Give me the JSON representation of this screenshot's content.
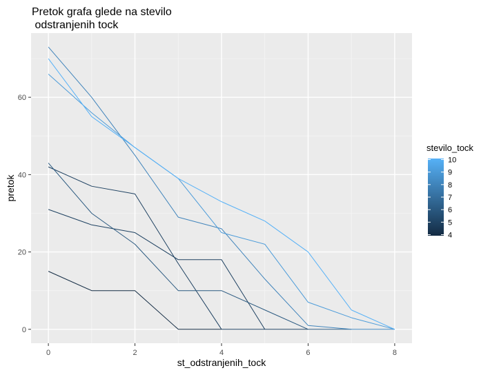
{
  "chart_data": {
    "type": "line",
    "title_lines": [
      "Pretok grafa glede na stevilo",
      " odstranjenih tock"
    ],
    "xlabel": "st_odstranjenih_tock",
    "ylabel": "pretok",
    "xlim": [
      -0.4,
      8.4
    ],
    "ylim": [
      -3.6,
      76.6
    ],
    "x_ticks": [
      0,
      2,
      4,
      6,
      8
    ],
    "y_ticks": [
      0,
      20,
      40,
      60
    ],
    "grid": true,
    "legend": {
      "title": "stevilo_tock",
      "position": "right",
      "range": [
        4,
        10
      ],
      "ticks": [
        10,
        9,
        8,
        7,
        6,
        5,
        4
      ],
      "color_low": "#132B43",
      "color_high": "#56B1F7"
    },
    "series": [
      {
        "stevilo_tock": 4,
        "x": [
          0,
          1,
          2,
          3,
          4
        ],
        "y": [
          15,
          10,
          10,
          0,
          0
        ]
      },
      {
        "stevilo_tock": 5,
        "x": [
          0,
          1,
          2,
          3,
          4,
          5
        ],
        "y": [
          31,
          27,
          25,
          18,
          18,
          0
        ]
      },
      {
        "stevilo_tock": 5,
        "x": [
          0,
          1,
          2,
          3,
          4,
          5,
          6
        ],
        "y": [
          42,
          37,
          35,
          17,
          0,
          0,
          0
        ]
      },
      {
        "stevilo_tock": 6,
        "x": [
          0,
          1,
          2,
          3,
          4,
          5,
          6,
          7
        ],
        "y": [
          43,
          30,
          22,
          10,
          10,
          5,
          0,
          0
        ]
      },
      {
        "stevilo_tock": 8,
        "x": [
          0,
          1,
          2,
          3,
          4,
          5,
          6,
          7,
          8
        ],
        "y": [
          73,
          60,
          45,
          29,
          26,
          13,
          1,
          0,
          0
        ]
      },
      {
        "stevilo_tock": 9,
        "x": [
          0,
          1,
          2,
          3,
          4,
          5,
          6,
          7,
          8
        ],
        "y": [
          66,
          56,
          47,
          39,
          25,
          22,
          7,
          3,
          0
        ]
      },
      {
        "stevilo_tock": 10,
        "x": [
          0,
          1,
          2,
          3,
          4,
          5,
          6,
          7,
          8
        ],
        "y": [
          70,
          55,
          47,
          39,
          33,
          28,
          20,
          5,
          0
        ]
      }
    ]
  }
}
